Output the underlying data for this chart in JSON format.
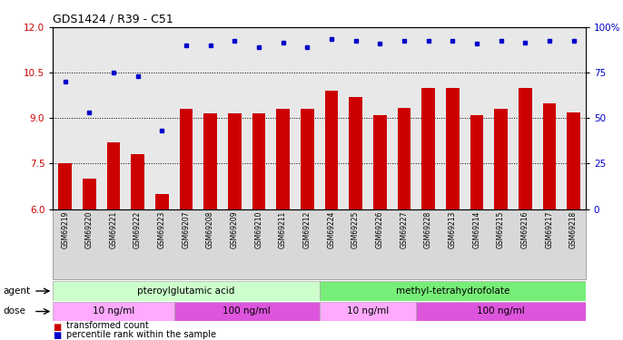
{
  "title": "GDS1424 / R39 - C51",
  "samples": [
    "GSM69219",
    "GSM69220",
    "GSM69221",
    "GSM69222",
    "GSM69223",
    "GSM69207",
    "GSM69208",
    "GSM69209",
    "GSM69210",
    "GSM69211",
    "GSM69212",
    "GSM69224",
    "GSM69225",
    "GSM69226",
    "GSM69227",
    "GSM69228",
    "GSM69213",
    "GSM69214",
    "GSM69215",
    "GSM69216",
    "GSM69217",
    "GSM69218"
  ],
  "bar_values": [
    7.5,
    7.0,
    8.2,
    7.8,
    6.5,
    9.3,
    9.15,
    9.15,
    9.15,
    9.3,
    9.3,
    9.9,
    9.7,
    9.1,
    9.35,
    10.0,
    10.0,
    9.1,
    9.3,
    10.0,
    9.5,
    9.2
  ],
  "percentile_values": [
    10.2,
    9.2,
    10.5,
    10.4,
    8.6,
    11.4,
    11.4,
    11.55,
    11.35,
    11.5,
    11.35,
    11.6,
    11.55,
    11.45,
    11.55,
    11.55,
    11.55,
    11.45,
    11.55,
    11.5,
    11.55,
    11.55
  ],
  "bar_color": "#cc0000",
  "dot_color": "#0000cc",
  "ylim_left": [
    6,
    12
  ],
  "ylim_right": [
    0,
    100
  ],
  "yticks_left": [
    6,
    7.5,
    9,
    10.5,
    12
  ],
  "yticks_right": [
    0,
    25,
    50,
    75,
    100
  ],
  "hlines": [
    7.5,
    9.0,
    10.5
  ],
  "agent_groups": [
    {
      "label": "pteroylglutamic acid",
      "start": 0,
      "end": 11,
      "color": "#ccffcc"
    },
    {
      "label": "methyl-tetrahydrofolate",
      "start": 11,
      "end": 22,
      "color": "#77ee77"
    }
  ],
  "dose_groups": [
    {
      "label": "10 ng/ml",
      "start": 0,
      "end": 5,
      "color": "#ffaaff"
    },
    {
      "label": "100 ng/ml",
      "start": 5,
      "end": 11,
      "color": "#dd55dd"
    },
    {
      "label": "10 ng/ml",
      "start": 11,
      "end": 15,
      "color": "#ffaaff"
    },
    {
      "label": "100 ng/ml",
      "start": 15,
      "end": 22,
      "color": "#dd55dd"
    }
  ],
  "legend_items": [
    {
      "label": "transformed count",
      "color": "#cc0000"
    },
    {
      "label": "percentile rank within the sample",
      "color": "#0000cc"
    }
  ],
  "agent_label": "agent",
  "dose_label": "dose",
  "tick_label_color_left": "#cc0000",
  "tick_label_color_right": "#0000cc",
  "plot_facecolor": "#e8e8e8"
}
